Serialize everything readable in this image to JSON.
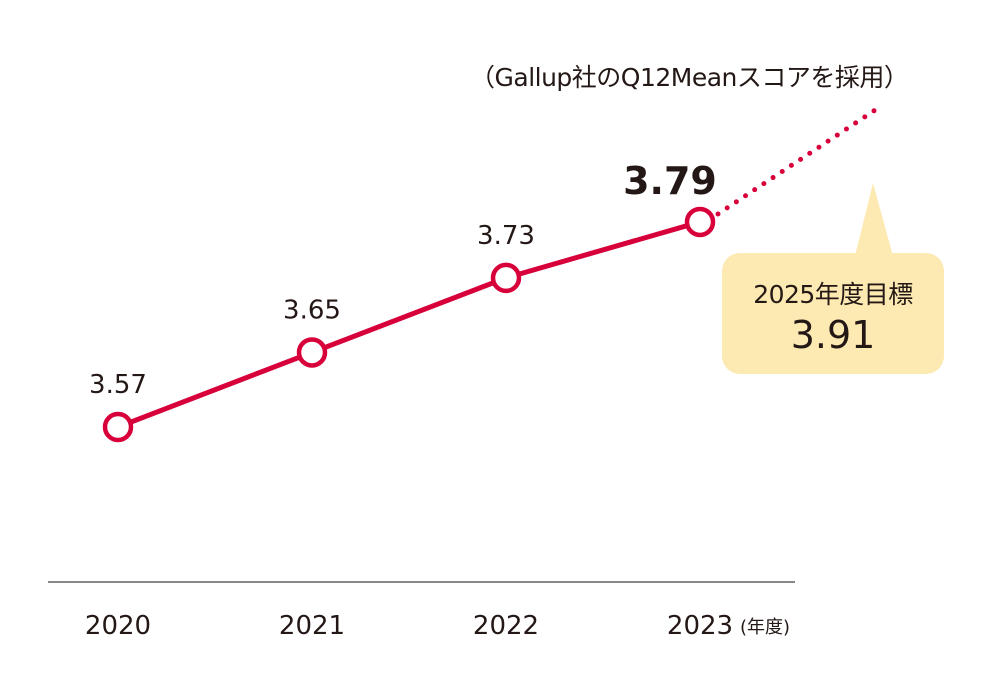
{
  "chart_data": {
    "type": "line",
    "categories": [
      "2020",
      "2021",
      "2022",
      "2023"
    ],
    "values": [
      3.57,
      3.65,
      3.73,
      3.79
    ],
    "data_labels": [
      "3.57",
      "3.65",
      "3.73",
      "3.79"
    ],
    "x_unit": "(年度)",
    "note": "（Gallup社のQ12Meanスコアを採用）",
    "target": {
      "label": "2025年度目標",
      "value": 3.91,
      "value_label": "3.91"
    },
    "grid": false,
    "legend": "none",
    "colors": {
      "line": "#d7003a",
      "callout": "#fdeab2",
      "axis": "#888888",
      "text": "#231815"
    }
  }
}
